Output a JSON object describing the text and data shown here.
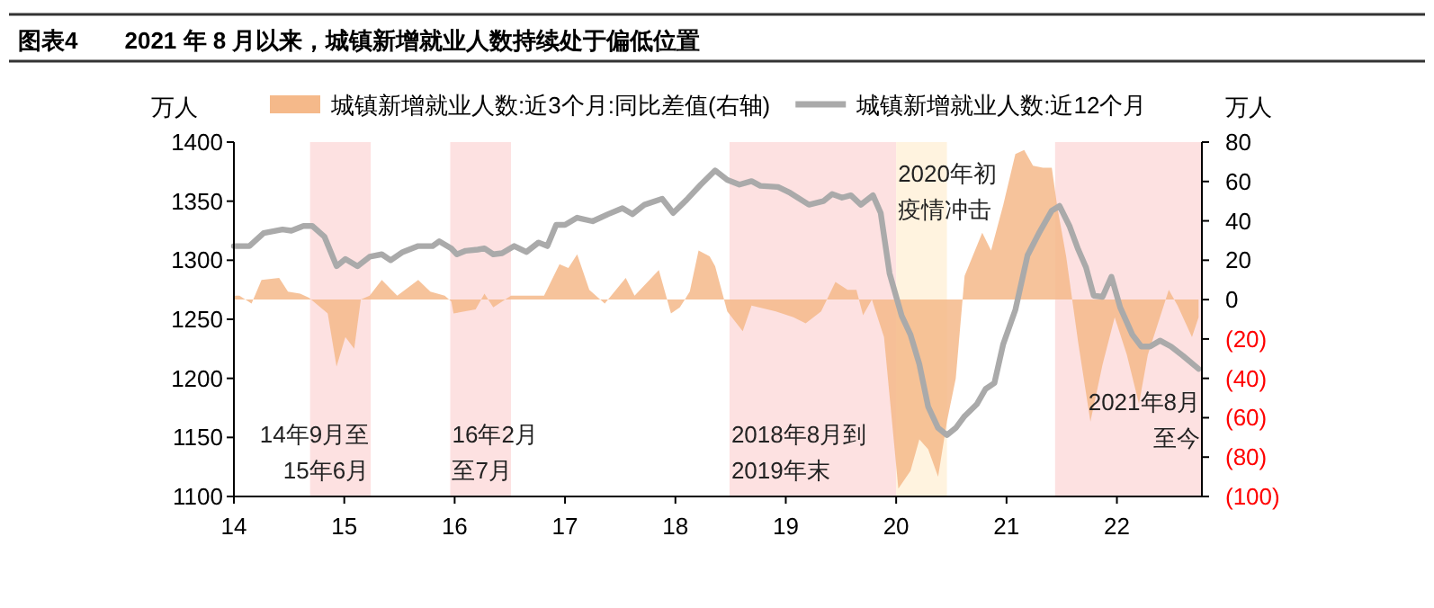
{
  "chart_data": {
    "type": "line",
    "title": "图表4　　2021 年 8 月以来，城镇新增就业人数持续处于偏低位置",
    "ylabel": "万人",
    "y2label": "万人",
    "legend": "top",
    "xlim": [
      14,
      22.77
    ],
    "xticks": [
      14,
      15,
      16,
      17,
      18,
      19,
      20,
      21,
      22
    ],
    "ylim": [
      1100,
      1400
    ],
    "yticks": [
      1100,
      1150,
      1200,
      1250,
      1300,
      1350,
      1400
    ],
    "y2lim": [
      -100,
      80
    ],
    "y2ticks": [
      {
        "value": -100,
        "label": "(100)"
      },
      {
        "value": -80,
        "label": "(80)"
      },
      {
        "value": -60,
        "label": "(60)"
      },
      {
        "value": -40,
        "label": "(40)"
      },
      {
        "value": -20,
        "label": "(20)"
      },
      0,
      20,
      40,
      60,
      80
    ],
    "bands": [
      {
        "axis": "x",
        "from": 14.69,
        "to": 15.24,
        "label": "14年9月至15年6月",
        "color": "#fde1e1"
      },
      {
        "axis": "x",
        "from": 15.96,
        "to": 16.51,
        "label": "16年2月至7月",
        "color": "#fde1e1"
      },
      {
        "axis": "x",
        "from": 18.49,
        "to": 20.0,
        "label": "2018年8月到2019年末",
        "color": "#fde1e1"
      },
      {
        "axis": "x",
        "from": 20.0,
        "to": 20.46,
        "label": "2020年初疫情冲击",
        "color": "#fff3df"
      },
      {
        "axis": "x",
        "from": 21.44,
        "to": 22.77,
        "label": "2021年8月至今",
        "color": "#fde1e1"
      }
    ],
    "series": [
      {
        "name": "城镇新增就业人数:近3个月:同比差值(右轴)",
        "type": "area",
        "axis": "y2",
        "color": "#f5b98a",
        "x": [
          14.0,
          14.05,
          14.16,
          14.25,
          14.41,
          14.49,
          14.6,
          14.68,
          14.85,
          14.93,
          15.01,
          15.09,
          15.15,
          15.23,
          15.34,
          15.48,
          15.67,
          15.78,
          15.91,
          15.97,
          15.99,
          16.19,
          16.27,
          16.35,
          16.51,
          16.68,
          16.81,
          16.95,
          17.03,
          17.11,
          17.22,
          17.36,
          17.55,
          17.63,
          17.85,
          17.96,
          18.04,
          18.13,
          18.21,
          18.31,
          18.36,
          18.47,
          18.61,
          18.69,
          18.91,
          19.07,
          19.18,
          19.32,
          19.45,
          19.56,
          19.64,
          19.7,
          19.78,
          19.89,
          20.02,
          20.13,
          20.21,
          20.29,
          20.38,
          20.46,
          20.54,
          20.62,
          20.78,
          20.86,
          20.97,
          21.08,
          21.16,
          21.24,
          21.33,
          21.41,
          21.46,
          21.54,
          21.65,
          21.76,
          21.87,
          21.98,
          22.09,
          22.2,
          22.28,
          22.39,
          22.47,
          22.55,
          22.68,
          22.74
        ],
        "values": [
          2,
          2,
          -2,
          10,
          11,
          4,
          3,
          1,
          -7,
          -34,
          -19,
          -25,
          0,
          2,
          10,
          2,
          10,
          4,
          2,
          -1,
          -7,
          -5,
          3,
          -4,
          2,
          2,
          2,
          18,
          16,
          23,
          5,
          -2,
          11,
          2,
          15,
          -7,
          -4,
          4,
          25,
          22,
          17,
          -6,
          -16,
          -3,
          -6,
          -9,
          -12,
          -6,
          9,
          5,
          5,
          -8,
          0,
          -19,
          -96,
          -87,
          -71,
          -76,
          -90,
          -62,
          -40,
          12,
          34,
          25,
          48,
          74,
          76,
          68,
          67,
          67,
          47,
          22,
          -22,
          -62,
          -33,
          -9,
          -28,
          -53,
          -28,
          -9,
          5,
          -3,
          -19,
          -9
        ]
      },
      {
        "name": "城镇新增就业人数:近12个月",
        "color": "#aaaaaa",
        "x": [
          14.0,
          14.14,
          14.27,
          14.44,
          14.52,
          14.63,
          14.71,
          14.82,
          14.93,
          15.01,
          15.12,
          15.23,
          15.34,
          15.42,
          15.53,
          15.67,
          15.8,
          15.86,
          15.97,
          16.02,
          16.1,
          16.21,
          16.27,
          16.35,
          16.43,
          16.54,
          16.65,
          16.76,
          16.84,
          16.92,
          17.0,
          17.11,
          17.25,
          17.39,
          17.52,
          17.61,
          17.72,
          17.88,
          17.98,
          18.1,
          18.23,
          18.36,
          18.47,
          18.58,
          18.69,
          18.77,
          18.93,
          19.04,
          19.21,
          19.34,
          19.42,
          19.51,
          19.59,
          19.68,
          19.79,
          19.86,
          19.94,
          20.05,
          20.13,
          20.21,
          20.29,
          20.38,
          20.46,
          20.54,
          20.62,
          20.73,
          20.81,
          20.89,
          20.97,
          21.08,
          21.19,
          21.3,
          21.41,
          21.48,
          21.57,
          21.65,
          21.72,
          21.79,
          21.87,
          21.95,
          22.03,
          22.14,
          22.22,
          22.3,
          22.39,
          22.49,
          22.6,
          22.74
        ],
        "values": [
          1312,
          1312,
          1323,
          1326,
          1325,
          1329,
          1329,
          1320,
          1295,
          1301,
          1295,
          1303,
          1305,
          1300,
          1307,
          1312,
          1312,
          1316,
          1310,
          1305,
          1308,
          1309,
          1310,
          1305,
          1306,
          1312,
          1307,
          1315,
          1312,
          1330,
          1330,
          1336,
          1333,
          1339,
          1344,
          1339,
          1347,
          1352,
          1340,
          1351,
          1364,
          1376,
          1368,
          1364,
          1367,
          1363,
          1362,
          1357,
          1347,
          1350,
          1356,
          1353,
          1355,
          1347,
          1355,
          1340,
          1289,
          1253,
          1237,
          1212,
          1176,
          1158,
          1152,
          1158,
          1168,
          1178,
          1191,
          1196,
          1229,
          1258,
          1304,
          1324,
          1342,
          1346,
          1329,
          1309,
          1294,
          1270,
          1269,
          1286,
          1260,
          1237,
          1227,
          1227,
          1232,
          1227,
          1219,
          1208
        ]
      }
    ]
  }
}
